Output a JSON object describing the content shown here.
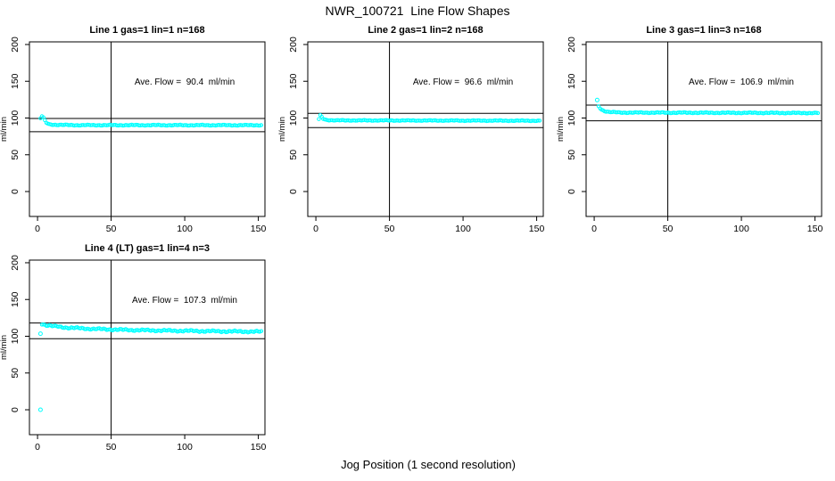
{
  "page_title": "NWR_100721  Line Flow Shapes",
  "x_axis_label": "Jog Position (1 second resolution)",
  "colors": {
    "points": "#00FFFF",
    "axis": "#000000",
    "text": "#000000",
    "background": "#FFFFFF"
  },
  "chart_data": [
    {
      "type": "scatter",
      "title": "Line 1 gas=1 lin=1 n=168",
      "annotation": "Ave. Flow =  90.4  ml/min",
      "ave_flow_ml_min": 90.4,
      "n": 168,
      "ylabel": "ml/min",
      "xticks": [
        0,
        50,
        100,
        150
      ],
      "yticks": [
        0,
        50,
        100,
        150,
        200
      ],
      "xlim": [
        -5.5,
        154.5
      ],
      "ylim": [
        -33.9,
        203.6
      ],
      "vline_x": 50,
      "hlines": [
        99.4,
        81.4
      ],
      "band_profile": [
        [
          2,
          99.5
        ],
        [
          3,
          102.5
        ],
        [
          4,
          100.5
        ],
        [
          5,
          96.5
        ],
        [
          6,
          93.5
        ],
        [
          8,
          91.5
        ],
        [
          12,
          90.8
        ],
        [
          25,
          90.3
        ],
        [
          152,
          90.2
        ]
      ],
      "band_noise": 0.7,
      "band_x_step": 1,
      "outlier_points": []
    },
    {
      "type": "scatter",
      "title": "Line 2 gas=1 lin=2 n=168",
      "annotation": "Ave. Flow =  96.6  ml/min",
      "ave_flow_ml_min": 96.6,
      "n": 168,
      "ylabel": "ml/min",
      "xticks": [
        0,
        50,
        100,
        150
      ],
      "yticks": [
        0,
        50,
        100,
        150,
        200
      ],
      "xlim": [
        -5.5,
        154.5
      ],
      "ylim": [
        -33.9,
        203.6
      ],
      "vline_x": 50,
      "hlines": [
        106.3,
        86.9
      ],
      "band_profile": [
        [
          2,
          98.5
        ],
        [
          3,
          103.5
        ],
        [
          4,
          101.5
        ],
        [
          5,
          99.0
        ],
        [
          7,
          97.5
        ],
        [
          12,
          96.8
        ],
        [
          152,
          96.3
        ]
      ],
      "band_noise": 0.6,
      "band_x_step": 1,
      "outlier_points": []
    },
    {
      "type": "scatter",
      "title": "Line 3 gas=1 lin=3 n=168",
      "annotation": "Ave. Flow =  106.9  ml/min",
      "ave_flow_ml_min": 106.9,
      "n": 168,
      "ylabel": "ml/min",
      "xticks": [
        0,
        50,
        100,
        150
      ],
      "yticks": [
        0,
        50,
        100,
        150,
        200
      ],
      "xlim": [
        -5.5,
        154.5
      ],
      "ylim": [
        -33.9,
        203.6
      ],
      "vline_x": 50,
      "hlines": [
        117.6,
        96.2
      ],
      "band_profile": [
        [
          3,
          116.0
        ],
        [
          4,
          113.5
        ],
        [
          5,
          111.5
        ],
        [
          7,
          109.5
        ],
        [
          10,
          108.2
        ],
        [
          18,
          107.4
        ],
        [
          152,
          106.8
        ]
      ],
      "band_noise": 0.7,
      "band_x_step": 1,
      "outlier_points": [
        [
          2,
          124.5
        ]
      ]
    },
    {
      "type": "scatter",
      "title": "Line 4 (LT) gas=1 lin=4 n=3",
      "annotation": "Ave. Flow =  107.3  ml/min",
      "ave_flow_ml_min": 107.3,
      "n": 3,
      "ylabel": "ml/min",
      "xticks": [
        0,
        50,
        100,
        150
      ],
      "yticks": [
        0,
        50,
        100,
        150,
        200
      ],
      "xlim": [
        -5.5,
        154.5
      ],
      "ylim": [
        -33.9,
        203.6
      ],
      "vline_x": 50,
      "hlines": [
        118.0,
        96.6
      ],
      "band_profile": [
        [
          3,
          117.0
        ],
        [
          5,
          115.5
        ],
        [
          10,
          113.8
        ],
        [
          20,
          111.8
        ],
        [
          35,
          110.2
        ],
        [
          60,
          108.6
        ],
        [
          90,
          107.6
        ],
        [
          120,
          106.8
        ],
        [
          152,
          106.2
        ]
      ],
      "band_noise": 1.3,
      "band_x_step": 1,
      "outlier_points": [
        [
          2,
          0
        ],
        [
          2,
          103.5
        ]
      ]
    }
  ]
}
